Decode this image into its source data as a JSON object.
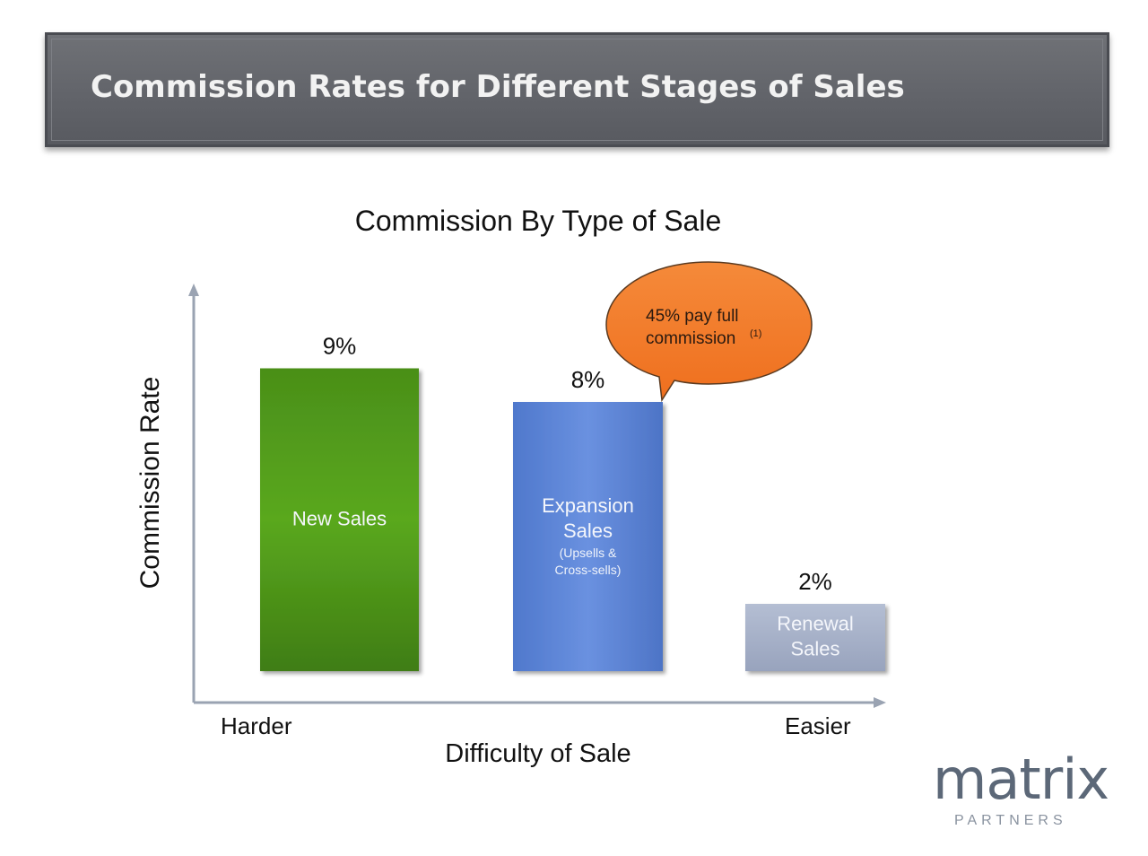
{
  "header": {
    "title": "Commission Rates for Different Stages of Sales"
  },
  "chart_data": {
    "type": "bar",
    "title": "Commission By Type of Sale",
    "xlabel": "Difficulty of Sale",
    "ylabel": "Commission Rate",
    "x_endpoints": {
      "left": "Harder",
      "right": "Easier"
    },
    "ylim": [
      0,
      10
    ],
    "grid": false,
    "categories": [
      "New Sales",
      "Expansion Sales",
      "Renewal Sales"
    ],
    "values": [
      9,
      8,
      2
    ],
    "value_labels": [
      "9%",
      "8%",
      "2%"
    ],
    "bar_labels": [
      {
        "lines": [
          "New Sales"
        ],
        "sub": []
      },
      {
        "lines": [
          "Expansion",
          "Sales"
        ],
        "sub": [
          "(Upsells &",
          "Cross-sells)"
        ]
      },
      {
        "lines": [
          "Renewal",
          "Sales"
        ],
        "sub": []
      }
    ],
    "colors": [
      "#4f9a1a",
      "#5b83d6",
      "#a9b4cb"
    ],
    "callout": {
      "text_lines": [
        "45% pay full",
        "commission"
      ],
      "footnote": "(1)",
      "color": "#f47b2a",
      "points_to": "Expansion Sales"
    }
  },
  "branding": {
    "name": "matrix",
    "sub": "PARTNERS"
  }
}
